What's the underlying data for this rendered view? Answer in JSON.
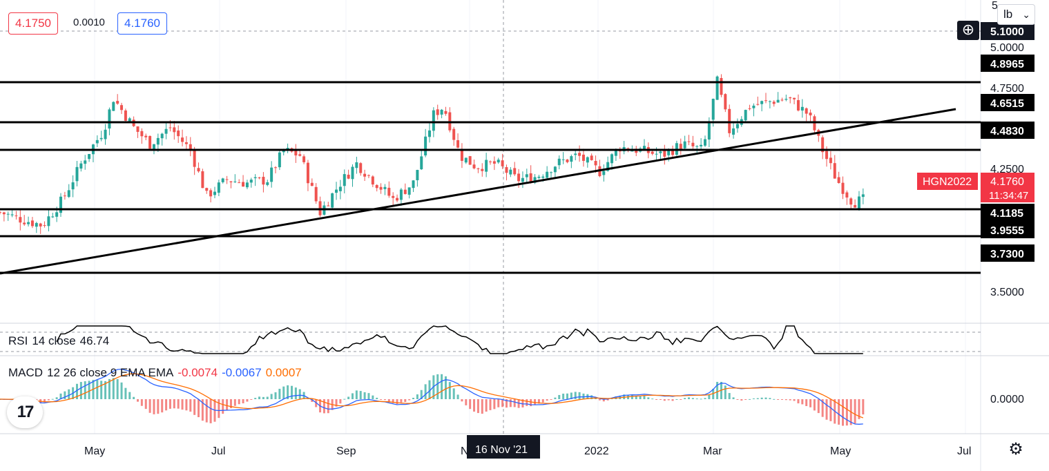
{
  "quote": {
    "bid": "4.1750",
    "spread": "0.0010",
    "ask": "4.1760"
  },
  "price_scale": {
    "unit": "lb",
    "ticks": [
      "5.0000",
      "4.7500",
      "4.2500",
      "3.5000"
    ],
    "top_partial": "5",
    "hover_price": "5.1000",
    "symbol_tag": "HGN2022",
    "last_price": "4.1760",
    "countdown": "11:34:47",
    "macd_tick": "0.0000"
  },
  "time_axis": {
    "labels": [
      "May",
      "Jul",
      "Sep",
      "N",
      "2022",
      "Mar",
      "May",
      "Jul"
    ],
    "crosshair_label": "16 Nov '21"
  },
  "horizontal_levels": [
    "4.8965",
    "4.6515",
    "4.4830",
    "4.1185",
    "3.9555",
    "3.7300"
  ],
  "rsi_legend": {
    "name": "RSI",
    "params": "14 close",
    "value": "46.74"
  },
  "macd_legend": {
    "name": "MACD",
    "params": "12 26 close 9 EMA EMA",
    "hist": "-0.0074",
    "macd": "-0.0067",
    "signal": "0.0007"
  },
  "colors": {
    "up": "#26a69a",
    "down": "#ef5350",
    "tag": "#f23645",
    "macd": "#2962ff",
    "signal": "#ff6d00",
    "level": "#000000"
  },
  "chart_data": {
    "type": "candlestick",
    "symbol": "HGN2022",
    "ylim": [
      3.3,
      5.2
    ],
    "x_range": [
      "2021-03-15",
      "2022-07-12"
    ],
    "close_series": [
      [
        "2021-03-15",
        4.1
      ],
      [
        "2021-03-25",
        4.06
      ],
      [
        "2021-04-05",
        4.02
      ],
      [
        "2021-04-15",
        4.18
      ],
      [
        "2021-04-25",
        4.42
      ],
      [
        "2021-05-05",
        4.6
      ],
      [
        "2021-05-10",
        4.8
      ],
      [
        "2021-05-20",
        4.62
      ],
      [
        "2021-05-28",
        4.52
      ],
      [
        "2021-06-07",
        4.62
      ],
      [
        "2021-06-17",
        4.48
      ],
      [
        "2021-06-25",
        4.2
      ],
      [
        "2021-07-05",
        4.3
      ],
      [
        "2021-07-15",
        4.28
      ],
      [
        "2021-07-25",
        4.3
      ],
      [
        "2021-08-02",
        4.48
      ],
      [
        "2021-08-10",
        4.45
      ],
      [
        "2021-08-20",
        4.1
      ],
      [
        "2021-08-30",
        4.28
      ],
      [
        "2021-09-07",
        4.4
      ],
      [
        "2021-09-15",
        4.3
      ],
      [
        "2021-09-25",
        4.18
      ],
      [
        "2021-10-05",
        4.28
      ],
      [
        "2021-10-15",
        4.7
      ],
      [
        "2021-10-20",
        4.75
      ],
      [
        "2021-10-28",
        4.45
      ],
      [
        "2021-11-05",
        4.38
      ],
      [
        "2021-11-15",
        4.4
      ],
      [
        "2021-11-25",
        4.3
      ],
      [
        "2021-12-05",
        4.32
      ],
      [
        "2021-12-15",
        4.4
      ],
      [
        "2021-12-25",
        4.45
      ],
      [
        "2022-01-05",
        4.35
      ],
      [
        "2022-01-15",
        4.5
      ],
      [
        "2022-01-25",
        4.48
      ],
      [
        "2022-02-05",
        4.45
      ],
      [
        "2022-02-15",
        4.52
      ],
      [
        "2022-02-25",
        4.48
      ],
      [
        "2022-03-04",
        4.9
      ],
      [
        "2022-03-10",
        4.6
      ],
      [
        "2022-03-20",
        4.75
      ],
      [
        "2022-03-30",
        4.78
      ],
      [
        "2022-04-08",
        4.8
      ],
      [
        "2022-04-18",
        4.7
      ],
      [
        "2022-04-25",
        4.48
      ],
      [
        "2022-05-02",
        4.3
      ],
      [
        "2022-05-10",
        4.16
      ],
      [
        "2022-05-16",
        4.18
      ]
    ],
    "levels": [
      4.8965,
      4.6515,
      4.483,
      4.1185,
      3.9555,
      3.73
    ],
    "trendline": {
      "from": [
        "2021-03-15",
        3.61
      ],
      "to": [
        "2022-06-22",
        4.62
      ]
    },
    "rsi": {
      "last": 46.74
    },
    "macd": {
      "macd": -0.0067,
      "signal": 0.0007,
      "histogram": -0.0074
    }
  }
}
